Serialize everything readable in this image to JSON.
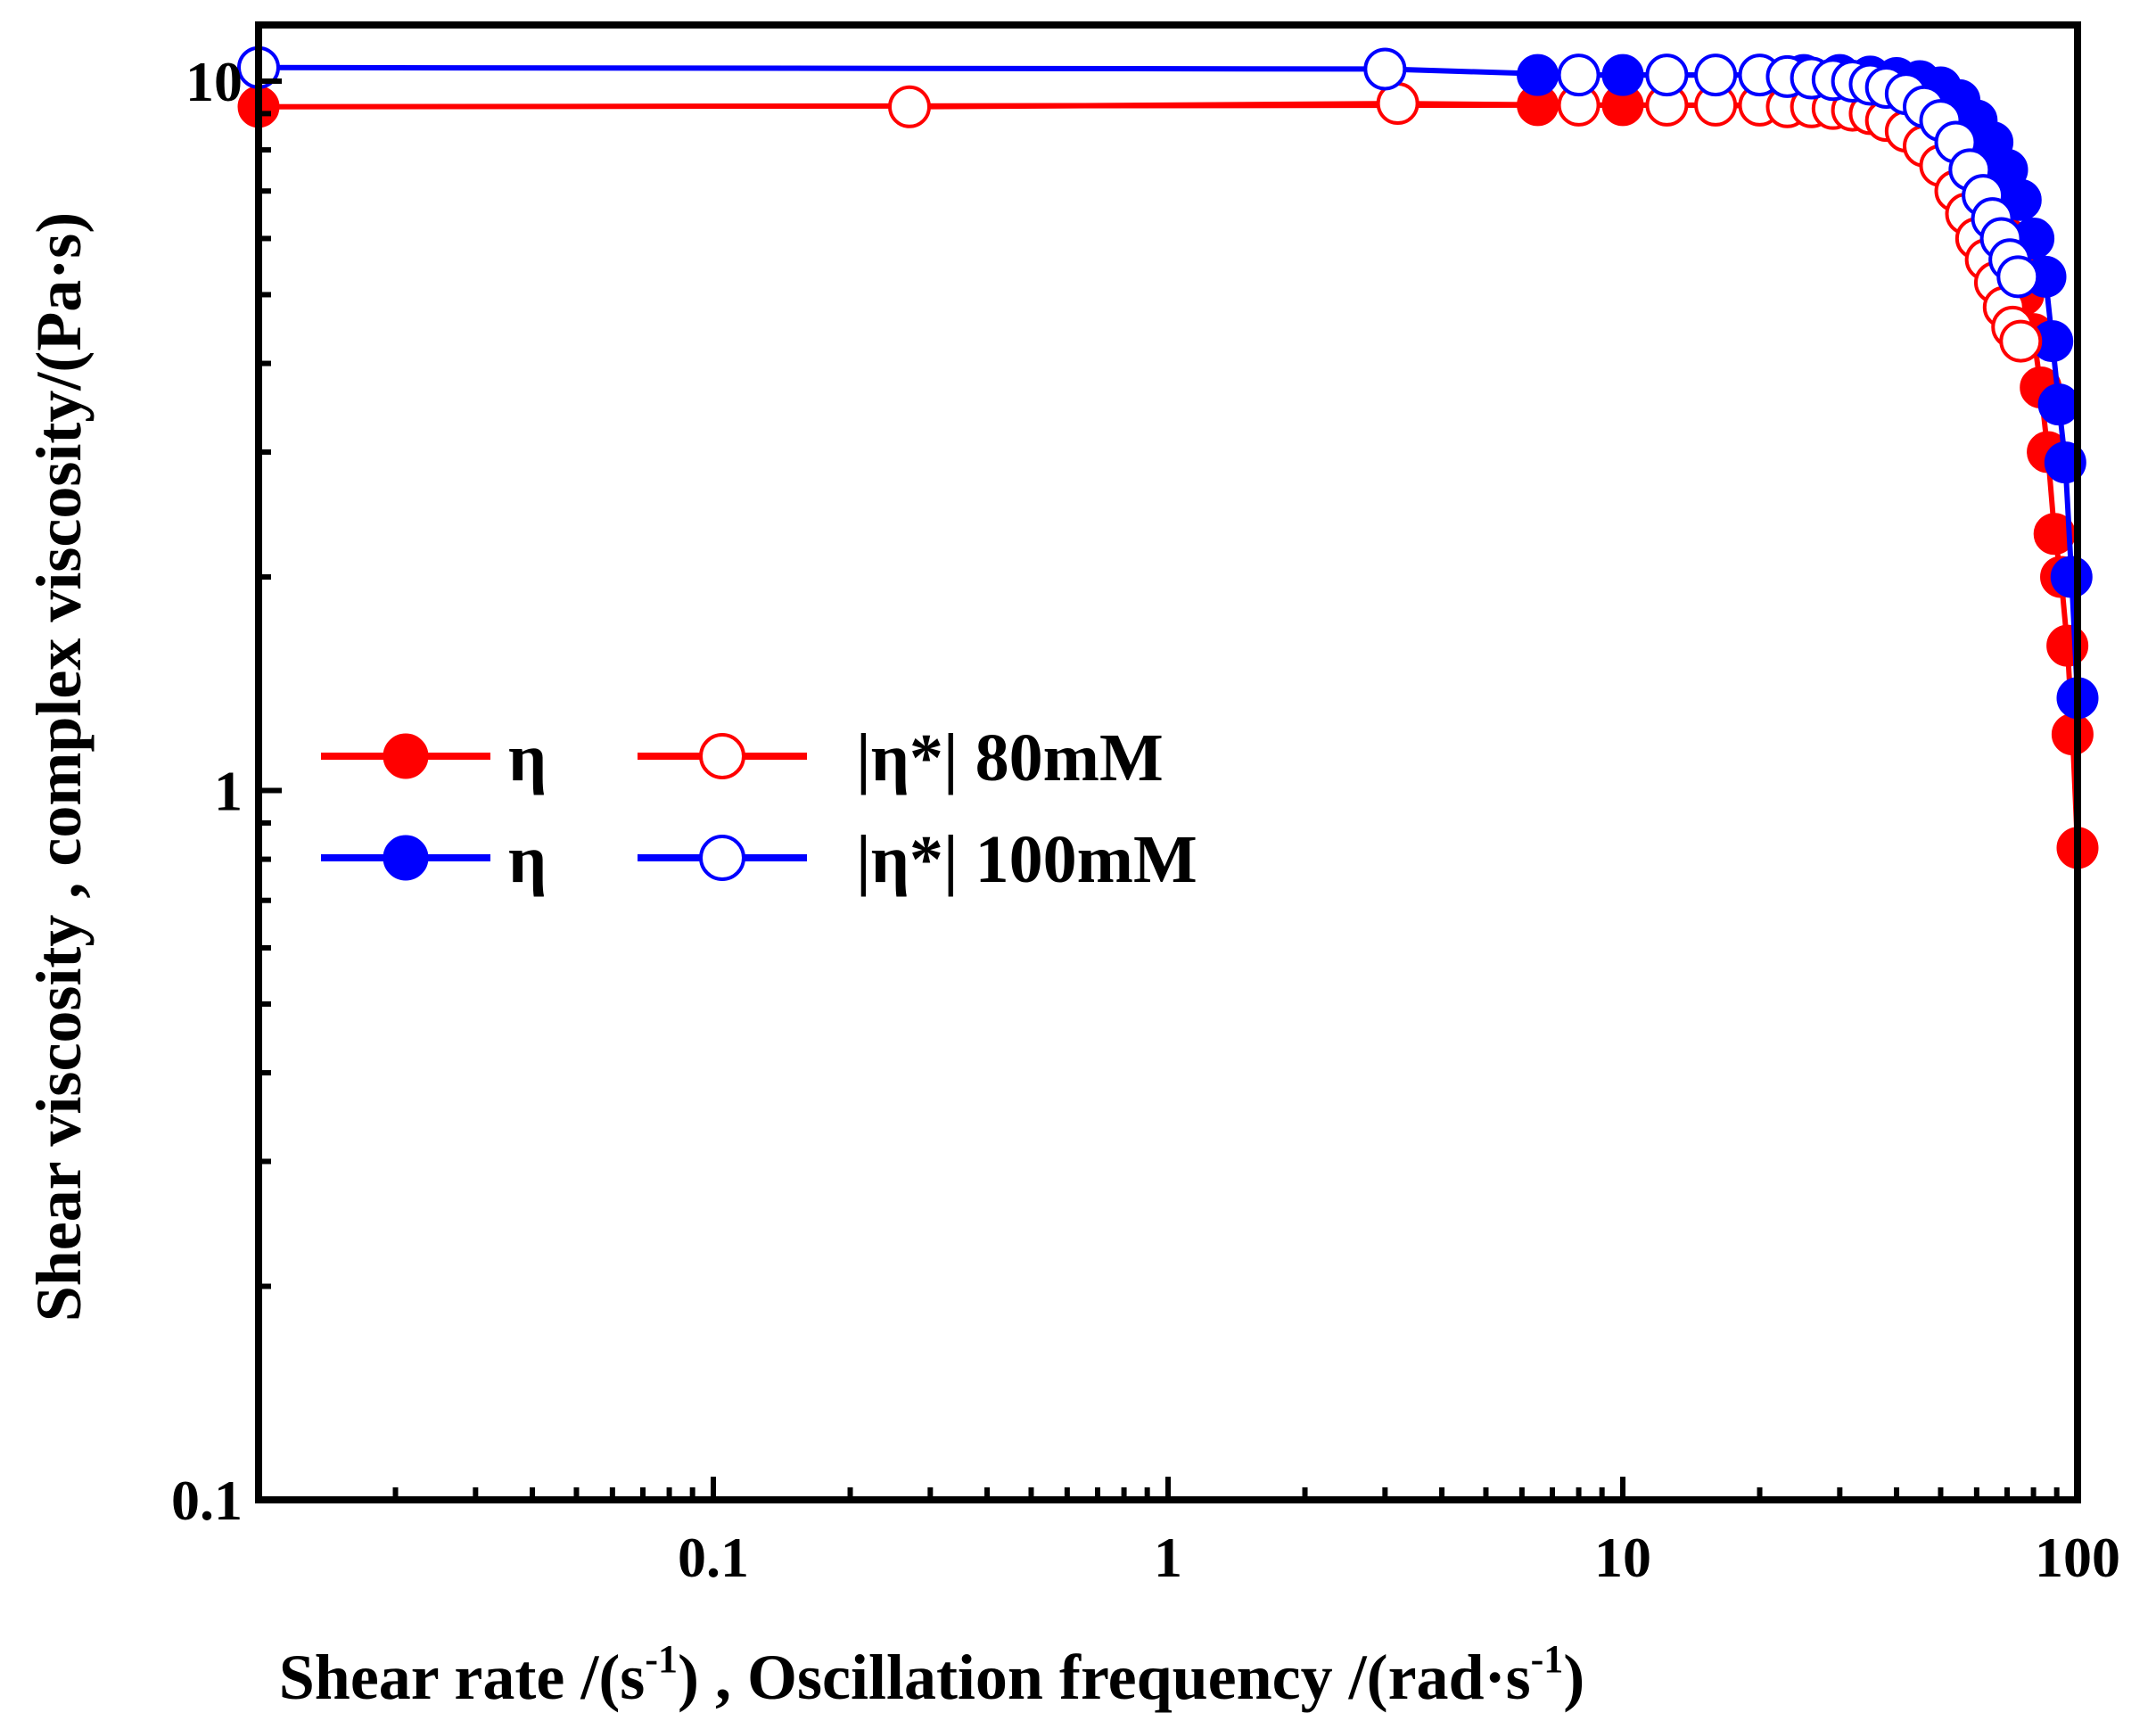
{
  "chart_data": {
    "type": "line",
    "xscale": "log",
    "yscale": "log",
    "xlim": [
      0.01,
      100
    ],
    "ylim": [
      0.1,
      12
    ],
    "xlabel": {
      "main": "Shear rate /(s",
      "sup1": "-1",
      "mid": ") , Oscillation frequency  /(rad·s",
      "sup2": "-1",
      "end": ")"
    },
    "ylabel": "Shear viscosity , complex viscosity/(Pa·s)",
    "xticks": [
      0.1,
      1,
      10,
      100
    ],
    "xtick_labels": [
      "0.1",
      "1",
      "10",
      "100"
    ],
    "yticks": [
      0.1,
      1,
      10
    ],
    "ytick_labels": [
      "0.1",
      "1",
      "10"
    ],
    "legend_layout": "two columns, left-center",
    "series": [
      {
        "id": "eta-80",
        "legend_label": "η",
        "color": "#ff0000",
        "filled": true,
        "x": [
          0.01,
          6.5,
          10,
          12.5,
          40,
          45,
          50,
          55,
          60,
          63,
          67,
          70,
          73,
          76,
          80,
          83,
          86,
          89,
          92,
          95,
          97.5,
          100
        ],
        "y": [
          9.2,
          9.25,
          9.25,
          9.25,
          9.2,
          9.0,
          8.6,
          8.0,
          7.2,
          6.9,
          6.5,
          6.0,
          5.5,
          5.0,
          4.4,
          3.7,
          3.0,
          2.3,
          2.0,
          1.6,
          1.2,
          0.83
        ]
      },
      {
        "id": "eta-100",
        "legend_label": "η",
        "color": "#0000ff",
        "filled": true,
        "x": [
          6.5,
          10,
          12.5,
          16,
          20,
          25,
          30,
          35,
          40,
          45,
          50,
          55,
          60,
          65,
          70,
          75,
          80,
          85,
          88,
          91,
          94,
          97,
          100
        ],
        "y": [
          10.2,
          10.2,
          10.2,
          10.2,
          10.2,
          10.2,
          10.2,
          10.15,
          10.1,
          10.0,
          9.8,
          9.4,
          8.8,
          8.2,
          7.5,
          6.8,
          6.0,
          5.3,
          4.3,
          3.5,
          2.9,
          2.0,
          1.35
        ]
      },
      {
        "id": "eta-star-80",
        "legend_label": "|η*| 80mM",
        "color": "#ff0000",
        "filled": false,
        "x": [
          0.27,
          3.2,
          8,
          12.5,
          16,
          20,
          23,
          26,
          29,
          32,
          35,
          38,
          42,
          46,
          50,
          54,
          57,
          60,
          63,
          66,
          69,
          72,
          75
        ],
        "y": [
          9.2,
          9.3,
          9.25,
          9.25,
          9.25,
          9.25,
          9.2,
          9.2,
          9.15,
          9.1,
          9.0,
          8.8,
          8.5,
          8.1,
          7.6,
          7.0,
          6.5,
          6.0,
          5.6,
          5.2,
          4.8,
          4.5,
          4.3
        ]
      },
      {
        "id": "eta-star-100",
        "legend_label": "|η*| 100mM",
        "color": "#0000ff",
        "filled": false,
        "x": [
          0.01,
          3.0,
          8,
          12.5,
          16,
          20,
          23,
          26,
          29,
          32,
          35,
          38,
          42,
          46,
          50,
          54,
          58,
          62,
          65,
          68,
          71,
          74
        ],
        "y": [
          10.45,
          10.4,
          10.2,
          10.2,
          10.2,
          10.2,
          10.15,
          10.1,
          10.05,
          10.0,
          9.9,
          9.8,
          9.6,
          9.2,
          8.8,
          8.2,
          7.5,
          6.9,
          6.4,
          6.0,
          5.6,
          5.3
        ]
      }
    ]
  }
}
